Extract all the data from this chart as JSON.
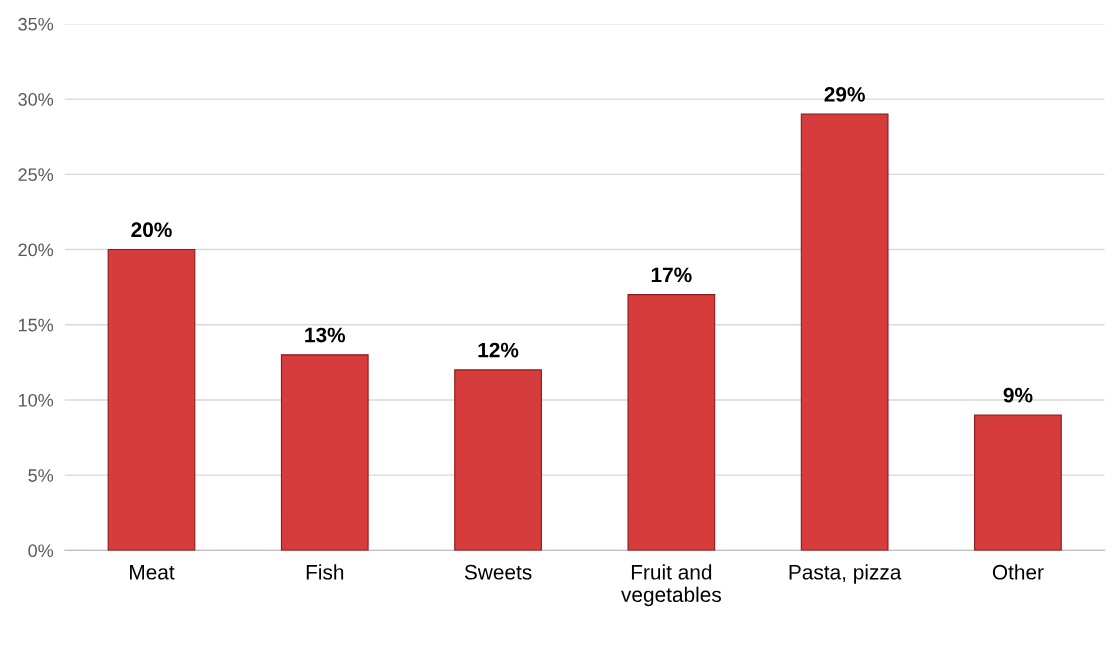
{
  "chart_data": {
    "type": "bar",
    "categories": [
      "Meat",
      "Fish",
      "Sweets",
      "Fruit and\nvegetables",
      "Pasta, pizza",
      "Other"
    ],
    "values": [
      20,
      13,
      12,
      17,
      29,
      9
    ],
    "value_labels": [
      "20%",
      "13%",
      "12%",
      "17%",
      "29%",
      "9%"
    ],
    "color": "#d63c3c",
    "ylim": [
      0,
      35
    ],
    "yticks": [
      {
        "value": 0,
        "label": "0%"
      },
      {
        "value": 5,
        "label": "5%"
      },
      {
        "value": 10,
        "label": "10%"
      },
      {
        "value": 15,
        "label": "15%"
      },
      {
        "value": 20,
        "label": "20%"
      },
      {
        "value": 25,
        "label": "25%"
      },
      {
        "value": 30,
        "label": "30%"
      },
      {
        "value": 35,
        "label": "35%"
      }
    ],
    "grid": "y"
  }
}
